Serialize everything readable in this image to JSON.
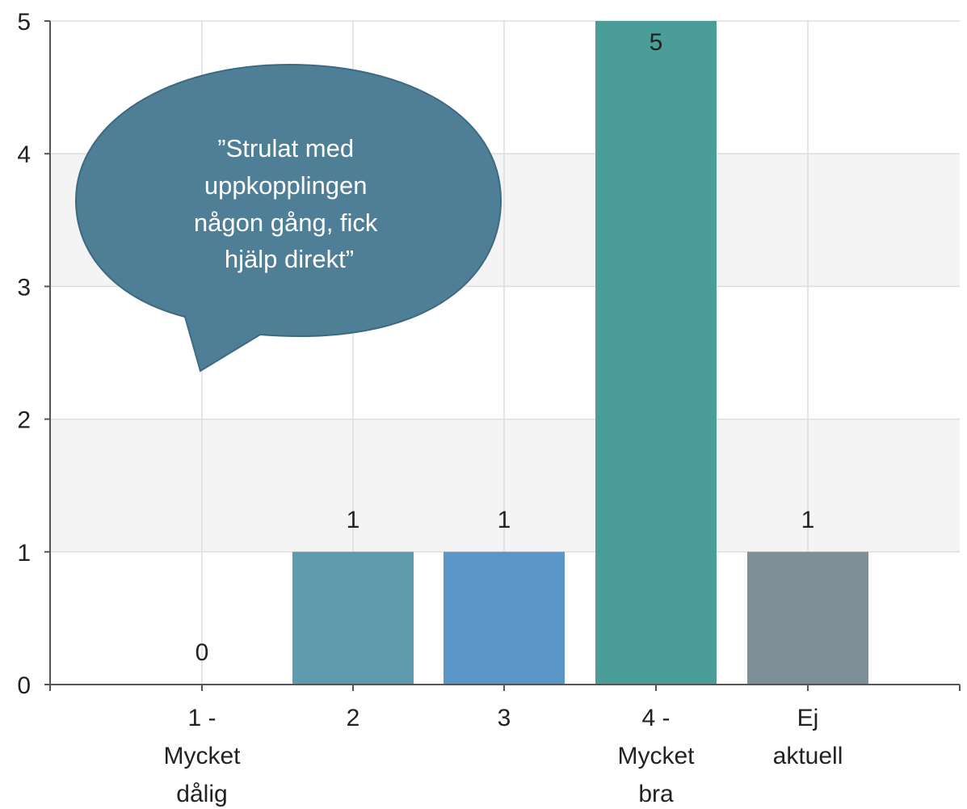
{
  "chart_data": {
    "type": "bar",
    "categories": [
      "1 - Mycket dålig",
      "2",
      "3",
      "4 - Mycket bra",
      "Ej aktuell"
    ],
    "category_label_lines": [
      [
        "1 -",
        "Mycket",
        "dålig"
      ],
      [
        "2"
      ],
      [
        "3"
      ],
      [
        "4 -",
        "Mycket",
        "bra"
      ],
      [
        "Ej",
        "aktuell"
      ]
    ],
    "values": [
      0,
      1,
      1,
      5,
      1
    ],
    "data_labels": [
      "0",
      "1",
      "1",
      "5",
      "1"
    ],
    "bar_colors": [
      "#5f9aae",
      "#5f9aae",
      "#5b96c8",
      "#4a9d98",
      "#7f8f98"
    ],
    "ylim": [
      0,
      5
    ],
    "yticks": [
      0,
      1,
      2,
      3,
      4,
      5
    ],
    "ytick_labels": [
      "0",
      "1",
      "2",
      "3",
      "4",
      "5"
    ],
    "grid": true,
    "alternate_band_color": "#f4f4f4",
    "grid_color": "#dddddd",
    "axis_color": "#555555",
    "title": "",
    "xlabel": "",
    "ylabel": ""
  },
  "callout": {
    "lines": [
      "”Strulat med",
      "uppkopplingen",
      "någon gång, fick",
      "hjälp direkt”"
    ],
    "fill": "#4f7f96",
    "stroke": "#3d6a80"
  }
}
